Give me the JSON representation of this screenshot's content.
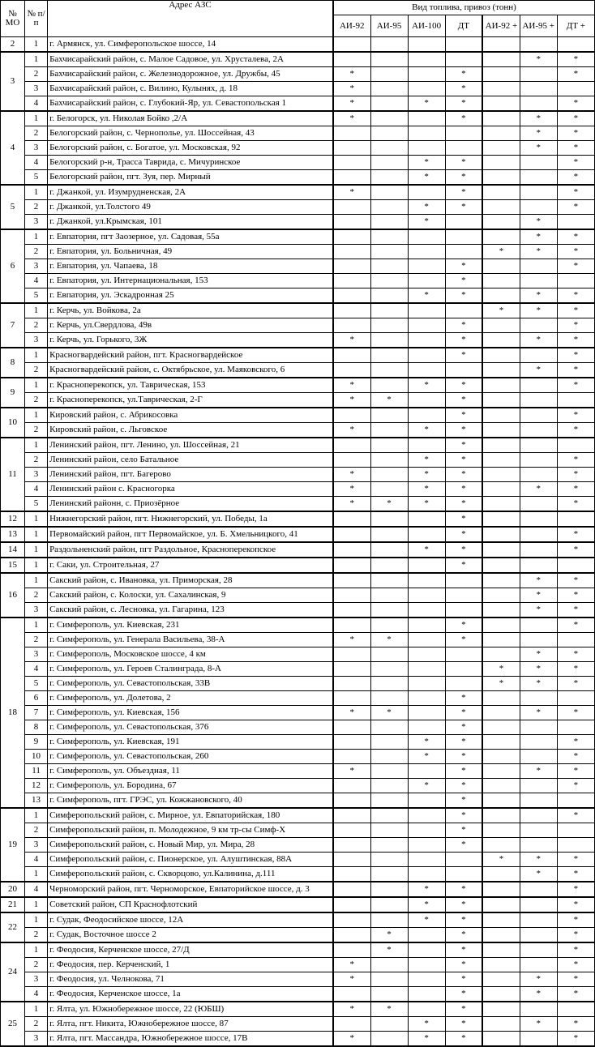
{
  "header": {
    "mo": "№ МО",
    "n": "№ п/п",
    "address": "Адрес АЗС",
    "fuel_title": "Вид топлива, привоз (тонн)",
    "fuel_types": [
      "АИ-92",
      "АИ-95",
      "АИ-100",
      "ДТ",
      "АИ-92 +",
      "АИ-95 +",
      "ДТ +"
    ]
  },
  "groups": [
    {
      "mo": 2,
      "rows": [
        {
          "n": 1,
          "address": "г. Армянск, ул. Симферопольское шоссе, 14",
          "fuel": [
            null,
            null,
            null,
            null,
            null,
            null,
            null
          ]
        }
      ]
    },
    {
      "mo": 3,
      "rows": [
        {
          "n": 1,
          "address": "Бахчисарайский район, с. Малое Садовое, ул. Хрусталева, 2А",
          "fuel": [
            null,
            null,
            null,
            null,
            null,
            "*",
            "*"
          ]
        },
        {
          "n": 2,
          "address": "Бахчисарайский район, с. Железнодорожное, ул. Дружбы, 45",
          "fuel": [
            "*",
            null,
            null,
            "*",
            null,
            null,
            "*"
          ]
        },
        {
          "n": 3,
          "address": "Бахчисарайский район, с. Вилино, Кулынях, д. 18",
          "fuel": [
            "*",
            null,
            null,
            "*",
            null,
            null,
            null
          ]
        },
        {
          "n": 4,
          "address": "Бахчисарайский район, с. Глубокий-Яр, ул. Севастопольская 1",
          "fuel": [
            "*",
            null,
            "*",
            "*",
            null,
            null,
            "*"
          ]
        }
      ]
    },
    {
      "mo": 4,
      "rows": [
        {
          "n": 1,
          "address": "г. Белогорск, ул. Николая Бойко ,2/А",
          "fuel": [
            "*",
            null,
            null,
            "*",
            null,
            "*",
            "*"
          ]
        },
        {
          "n": 2,
          "address": "Белогорский район, с. Чернополье, ул. Шоссейная, 43",
          "fuel": [
            null,
            null,
            null,
            null,
            null,
            "*",
            "*"
          ]
        },
        {
          "n": 3,
          "address": "Белогорский район, с. Богатое, ул. Московская, 92",
          "fuel": [
            null,
            null,
            null,
            null,
            null,
            "*",
            "*"
          ]
        },
        {
          "n": 4,
          "address": "Белогорский р-н, Трасса Таврида, с. Мичуринское",
          "fuel": [
            null,
            null,
            "*",
            "*",
            null,
            null,
            "*"
          ]
        },
        {
          "n": 5,
          "address": "Белогорский район, пгт. Зуя, пер. Мирный",
          "fuel": [
            null,
            null,
            "*",
            "*",
            null,
            null,
            "*"
          ]
        }
      ]
    },
    {
      "mo": 5,
      "rows": [
        {
          "n": 1,
          "address": "г. Джанкой, ул. Изумрудненская, 2А",
          "fuel": [
            "*",
            null,
            null,
            "*",
            null,
            null,
            "*"
          ]
        },
        {
          "n": 2,
          "address": "г. Джанкой, ул.Толстого 49",
          "fuel": [
            null,
            null,
            "*",
            "*",
            null,
            null,
            "*"
          ]
        },
        {
          "n": 3,
          "address": "г. Джанкой, ул.Крымская, 101",
          "fuel": [
            null,
            null,
            "*",
            null,
            null,
            "*",
            null
          ]
        }
      ]
    },
    {
      "mo": 6,
      "rows": [
        {
          "n": 1,
          "address": "г. Евпатория, пгт Заозерное, ул. Садовая, 55а",
          "fuel": [
            null,
            null,
            null,
            null,
            null,
            "*",
            "*"
          ]
        },
        {
          "n": 2,
          "address": "г. Евпатория, ул. Больничная, 49",
          "fuel": [
            null,
            null,
            null,
            null,
            "*",
            "*",
            "*"
          ]
        },
        {
          "n": 3,
          "address": "г. Евпатория, ул. Чапаева, 18",
          "fuel": [
            null,
            null,
            null,
            "*",
            null,
            null,
            "*"
          ]
        },
        {
          "n": 4,
          "address": "г. Евпатория, ул. Интернациональная, 153",
          "fuel": [
            null,
            null,
            null,
            "*",
            null,
            null,
            null
          ]
        },
        {
          "n": 5,
          "address": "г. Евпатория, ул. Эскадронная 25",
          "fuel": [
            null,
            null,
            "*",
            "*",
            null,
            "*",
            "*"
          ]
        }
      ]
    },
    {
      "mo": 7,
      "rows": [
        {
          "n": 1,
          "address": "г. Керчь, ул. Войкова, 2а",
          "fuel": [
            null,
            null,
            null,
            null,
            "*",
            "*",
            "*"
          ]
        },
        {
          "n": 2,
          "address": "г. Керчь, ул.Свердлова, 49в",
          "fuel": [
            null,
            null,
            null,
            "*",
            null,
            null,
            "*"
          ]
        },
        {
          "n": 3,
          "address": "г. Керчь, ул. Горького, 3Ж",
          "fuel": [
            "*",
            null,
            null,
            "*",
            null,
            "*",
            "*"
          ]
        }
      ]
    },
    {
      "mo": 8,
      "rows": [
        {
          "n": 1,
          "address": "Красногвардейский район, пгт. Красногвардейское",
          "fuel": [
            null,
            null,
            null,
            "*",
            null,
            null,
            "*"
          ]
        },
        {
          "n": 2,
          "address": "Красногвардейский район, с. Октябрьское, ул. Маяковского, 6",
          "fuel": [
            null,
            null,
            null,
            null,
            null,
            "*",
            "*"
          ]
        }
      ]
    },
    {
      "mo": 9,
      "rows": [
        {
          "n": 1,
          "address": "г. Красноперекопск, ул. Таврическая, 153",
          "fuel": [
            "*",
            null,
            "*",
            "*",
            null,
            null,
            "*"
          ]
        },
        {
          "n": 2,
          "address": "г. Красноперекопск, ул.Таврическая, 2-Г",
          "fuel": [
            "*",
            "*",
            null,
            "*",
            null,
            null,
            null
          ]
        }
      ]
    },
    {
      "mo": 10,
      "rows": [
        {
          "n": 1,
          "address": "Кировский район, с. Абрикосовка",
          "fuel": [
            null,
            null,
            null,
            "*",
            null,
            null,
            "*"
          ]
        },
        {
          "n": 2,
          "address": "Кировский район, с. Льговское",
          "fuel": [
            "*",
            null,
            "*",
            "*",
            null,
            null,
            "*"
          ]
        }
      ]
    },
    {
      "mo": 11,
      "rows": [
        {
          "n": 1,
          "address": "Ленинский район, пгт. Ленино, ул. Шоссейная, 21",
          "fuel": [
            null,
            null,
            null,
            "*",
            null,
            null,
            null
          ]
        },
        {
          "n": 2,
          "address": "Ленинский район, село Батальное",
          "fuel": [
            null,
            null,
            "*",
            "*",
            null,
            null,
            "*"
          ]
        },
        {
          "n": 3,
          "address": "Ленинский район, пгт. Багерово",
          "fuel": [
            "*",
            null,
            "*",
            "*",
            null,
            null,
            "*"
          ]
        },
        {
          "n": 4,
          "address": "Ленинский район с. Красногорка",
          "fuel": [
            "*",
            null,
            "*",
            "*",
            null,
            "*",
            "*"
          ]
        },
        {
          "n": 5,
          "address": "Ленинский районн, с. Приозёрное",
          "fuel": [
            "*",
            "*",
            "*",
            "*",
            null,
            null,
            "*"
          ]
        }
      ]
    },
    {
      "mo": 12,
      "rows": [
        {
          "n": 1,
          "address": "Нижнегорский район, пгт. Нижнегорский, ул. Победы, 1а",
          "fuel": [
            null,
            null,
            null,
            "*",
            null,
            null,
            null
          ]
        }
      ]
    },
    {
      "mo": 13,
      "rows": [
        {
          "n": 1,
          "address": "Первомайский район, пгт Первомайское, ул. Б. Хмельницкого, 41",
          "fuel": [
            null,
            null,
            null,
            "*",
            null,
            null,
            "*"
          ]
        }
      ]
    },
    {
      "mo": 14,
      "rows": [
        {
          "n": 1,
          "address": "Раздольненский район, пгт Раздольное, Красноперекопское",
          "fuel": [
            null,
            null,
            "*",
            "*",
            null,
            null,
            "*"
          ]
        }
      ]
    },
    {
      "mo": 15,
      "rows": [
        {
          "n": 1,
          "address": "г. Саки, ул. Строительная, 27",
          "fuel": [
            null,
            null,
            null,
            "*",
            null,
            null,
            null
          ]
        }
      ]
    },
    {
      "mo": 16,
      "rows": [
        {
          "n": 1,
          "address": "Сакский район, с. Ивановка, ул. Приморская, 28",
          "fuel": [
            null,
            null,
            null,
            null,
            null,
            "*",
            "*"
          ]
        },
        {
          "n": 2,
          "address": "Сакский район, с. Колоски, ул. Сахалинская, 9",
          "fuel": [
            null,
            null,
            null,
            null,
            null,
            "*",
            "*"
          ]
        },
        {
          "n": 3,
          "address": "Сакский район, с. Лесновка, ул. Гагарина, 123",
          "fuel": [
            null,
            null,
            null,
            null,
            null,
            "*",
            "*"
          ]
        }
      ]
    },
    {
      "mo": 18,
      "rows": [
        {
          "n": 1,
          "address": "г. Симферополь, ул. Киевская, 231",
          "fuel": [
            null,
            null,
            null,
            "*",
            null,
            null,
            "*"
          ]
        },
        {
          "n": 2,
          "address": "г. Симферополь, ул. Генерала Васильева, 38-А",
          "fuel": [
            "*",
            "*",
            null,
            "*",
            null,
            null,
            null
          ]
        },
        {
          "n": 3,
          "address": "г. Симферополь, Московское шоссе, 4 км",
          "fuel": [
            null,
            null,
            null,
            null,
            null,
            "*",
            "*"
          ]
        },
        {
          "n": 4,
          "address": "г. Симферополь, ул. Героев Сталинграда, 8-А",
          "fuel": [
            null,
            null,
            null,
            null,
            "*",
            "*",
            "*"
          ]
        },
        {
          "n": 5,
          "address": "г. Симферополь, ул. Севастопольская, 33В",
          "fuel": [
            null,
            null,
            null,
            null,
            "*",
            "*",
            "*"
          ]
        },
        {
          "n": 6,
          "address": "г. Симферополь, ул. Долетова, 2",
          "fuel": [
            null,
            null,
            null,
            "*",
            null,
            null,
            null
          ]
        },
        {
          "n": 7,
          "address": "г. Симферополь, ул. Киевская, 156",
          "fuel": [
            "*",
            "*",
            null,
            "*",
            null,
            "*",
            "*"
          ]
        },
        {
          "n": 8,
          "address": "г. Симферополь, ул. Севастопольская, 376",
          "fuel": [
            null,
            null,
            null,
            "*",
            null,
            null,
            null
          ]
        },
        {
          "n": 9,
          "address": "г. Симферополь, ул. Киевская, 191",
          "fuel": [
            null,
            null,
            "*",
            "*",
            null,
            null,
            "*"
          ]
        },
        {
          "n": 10,
          "address": "г. Симферополь, ул. Севастопольская, 260",
          "fuel": [
            null,
            null,
            "*",
            "*",
            null,
            null,
            "*"
          ]
        },
        {
          "n": 11,
          "address": "г. Симферополь, ул. Объездная, 11",
          "fuel": [
            "*",
            null,
            null,
            "*",
            null,
            "*",
            "*"
          ]
        },
        {
          "n": 12,
          "address": "г. Симферополь, ул. Бородина, 67",
          "fuel": [
            null,
            null,
            "*",
            "*",
            null,
            null,
            "*"
          ]
        },
        {
          "n": 13,
          "address": "г. Симферополь, пгт. ГРЭС, ул. Кожжановского, 40",
          "fuel": [
            null,
            null,
            null,
            "*",
            null,
            null,
            null
          ]
        }
      ]
    },
    {
      "mo": 19,
      "rows": [
        {
          "n": 1,
          "address": "Симферопольский район, с. Мирное, ул. Евпаторийская, 180",
          "fuel": [
            null,
            null,
            null,
            "*",
            null,
            null,
            "*"
          ]
        },
        {
          "n": 2,
          "address": "Симферопольский район, п. Молодежное, 9 км тр-сы Симф-Х",
          "fuel": [
            null,
            null,
            null,
            "*",
            null,
            null,
            null
          ]
        },
        {
          "n": 3,
          "address": "Симферопольский район, с. Новый Мир, ул. Мира, 28",
          "fuel": [
            null,
            null,
            null,
            "*",
            null,
            null,
            null
          ]
        },
        {
          "n": 4,
          "address": "Симферопольский район, с. Пионерское, ул. Алуштинская, 88А",
          "fuel": [
            null,
            null,
            null,
            null,
            "*",
            "*",
            "*"
          ]
        },
        {
          "n": 1,
          "address": "Симферопольский район, с. Скворцово, ул.Калинина, д.111",
          "fuel": [
            null,
            null,
            null,
            null,
            null,
            "*",
            "*"
          ]
        }
      ]
    },
    {
      "mo": 20,
      "rows": [
        {
          "n": 4,
          "address": "Черноморский район, пгт. Черноморское, Евпаторийское шоссе, д. 3",
          "fuel": [
            null,
            null,
            "*",
            "*",
            null,
            null,
            "*"
          ]
        }
      ]
    },
    {
      "mo": 21,
      "rows": [
        {
          "n": 1,
          "address": "Советский район, СП Краснофлотский",
          "fuel": [
            null,
            null,
            "*",
            "*",
            null,
            null,
            "*"
          ]
        }
      ]
    },
    {
      "mo": 22,
      "rows": [
        {
          "n": 1,
          "address": "г. Судак, Феодосийское шоссе, 12А",
          "fuel": [
            null,
            null,
            "*",
            "*",
            null,
            null,
            "*"
          ]
        },
        {
          "n": 2,
          "address": "г. Судак, Восточное шоссе 2",
          "fuel": [
            null,
            "*",
            null,
            "*",
            null,
            null,
            "*"
          ]
        }
      ]
    },
    {
      "mo": 24,
      "rows": [
        {
          "n": 1,
          "address": "г. Феодосия, Керченское шоссе, 27/Д",
          "fuel": [
            null,
            "*",
            null,
            "*",
            null,
            null,
            "*"
          ]
        },
        {
          "n": 2,
          "address": "г. Феодосия, пер. Керченский, 1",
          "fuel": [
            "*",
            null,
            null,
            "*",
            null,
            null,
            "*"
          ]
        },
        {
          "n": 3,
          "address": "г. Феодосия, ул. Челнокова, 71",
          "fuel": [
            "*",
            null,
            null,
            "*",
            null,
            "*",
            "*"
          ]
        },
        {
          "n": 4,
          "address": "г. Феодосия, Керченское шоссе, 1а",
          "fuel": [
            null,
            null,
            null,
            "*",
            null,
            "*",
            "*"
          ]
        }
      ]
    },
    {
      "mo": 25,
      "rows": [
        {
          "n": 1,
          "address": "г. Ялта, ул. Южнобережное шоссе, 22 (ЮБШ)",
          "fuel": [
            "*",
            "*",
            null,
            "*",
            null,
            null,
            null
          ]
        },
        {
          "n": 2,
          "address": "г. Ялта, пгт. Никита, Южнобережное шоссе, 87",
          "fuel": [
            null,
            null,
            "*",
            "*",
            null,
            "*",
            "*"
          ]
        },
        {
          "n": 3,
          "address": "г. Ялта, пгт. Массандра, Южнобережное шоссе, 17В",
          "fuel": [
            "*",
            null,
            "*",
            "*",
            null,
            null,
            "*"
          ]
        }
      ]
    }
  ]
}
